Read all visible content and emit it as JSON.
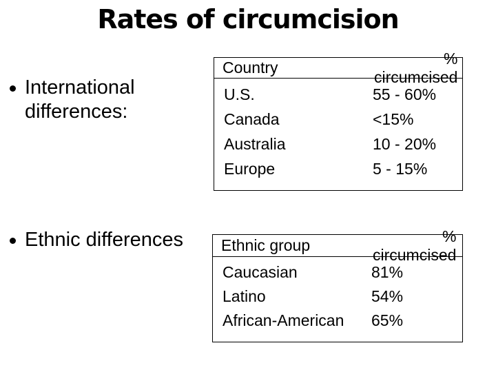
{
  "slide": {
    "title": "Rates of circumcision",
    "bullets": [
      "International differences:",
      "Ethnic differences"
    ]
  },
  "tables": {
    "country": {
      "headers": [
        "Country",
        "% circumcised"
      ],
      "rows": [
        [
          "U.S.",
          "55 - 60%"
        ],
        [
          "Canada",
          "<15%"
        ],
        [
          "Australia",
          "10 - 20%"
        ],
        [
          "Europe",
          "5 - 15%"
        ]
      ]
    },
    "ethnic": {
      "headers": [
        "Ethnic group",
        "% circumcised"
      ],
      "rows": [
        [
          "Caucasian",
          "81%"
        ],
        [
          "Latino",
          "54%"
        ],
        [
          "African-American",
          "65%"
        ]
      ]
    }
  },
  "colors": {
    "background": "#ffffff",
    "text": "#000000",
    "border": "#000000"
  }
}
